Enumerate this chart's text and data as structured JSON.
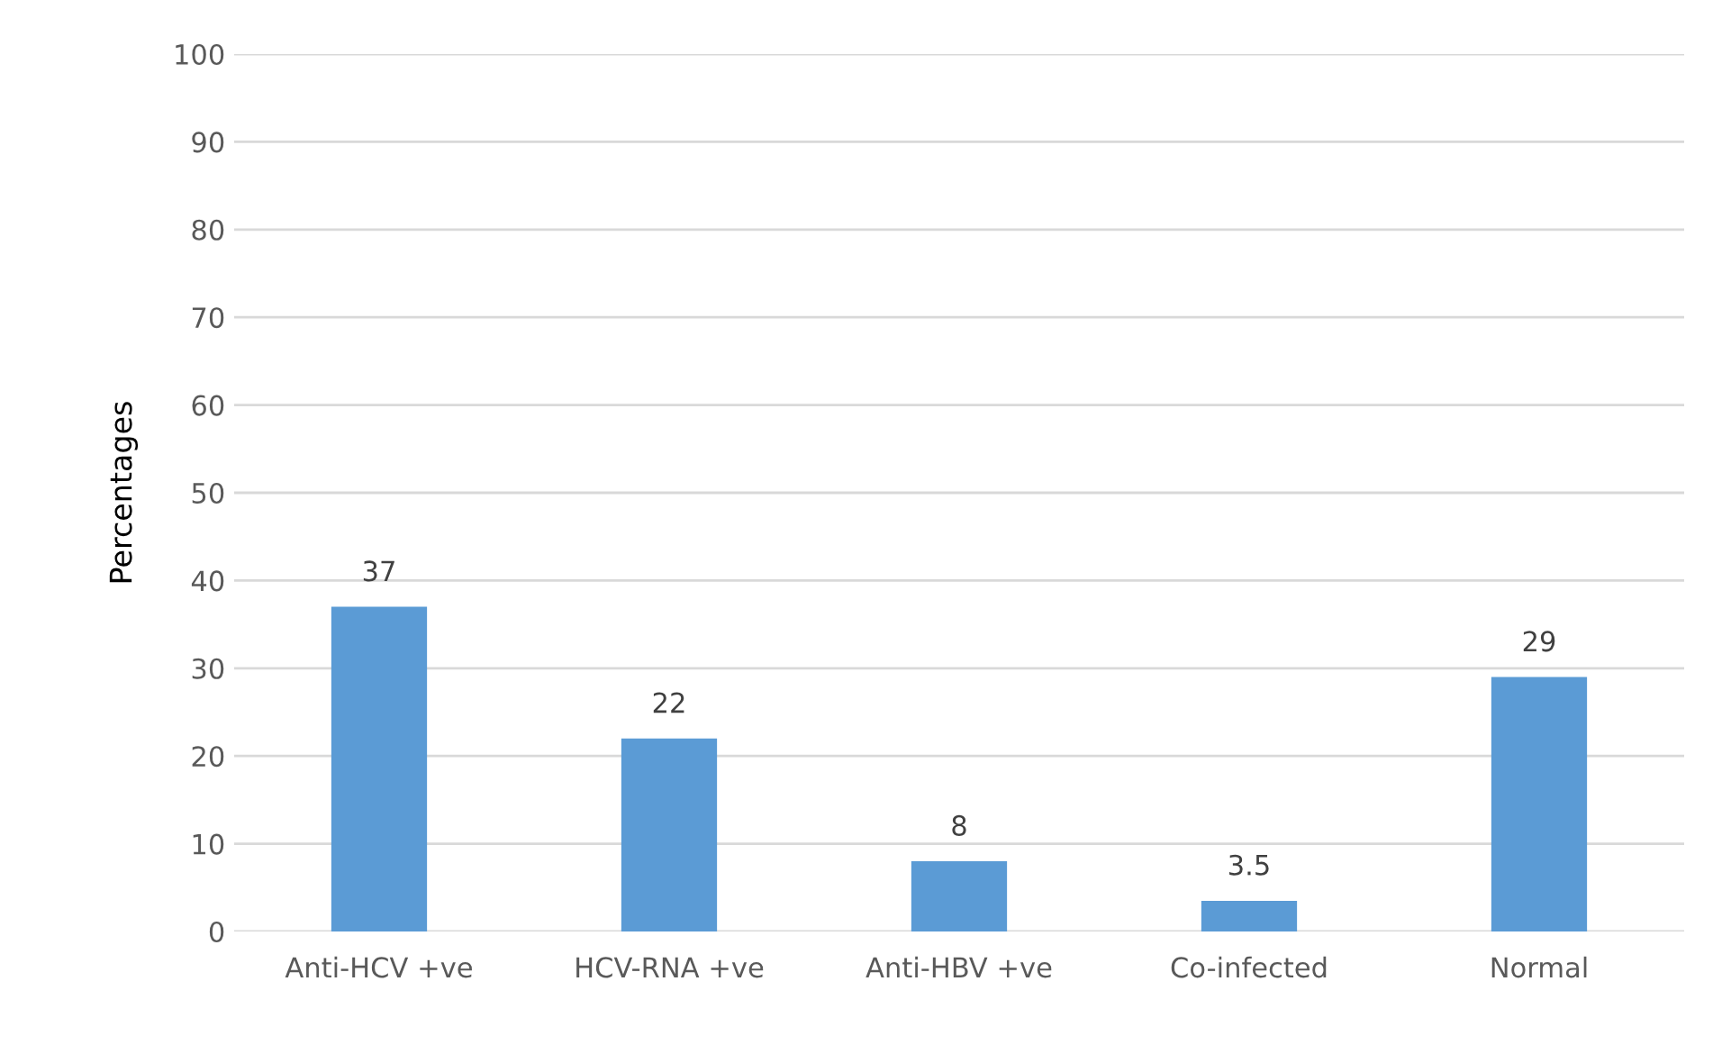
{
  "chart_data": {
    "type": "bar",
    "ylabel": "Percentages",
    "categories": [
      "Anti-HCV +ve",
      "HCV-RNA +ve",
      "Anti-HBV +ve",
      "Co-infected",
      "Normal"
    ],
    "values": [
      37,
      22,
      8,
      3.5,
      29
    ],
    "color": "#5b9bd5",
    "ylim": [
      0,
      100
    ],
    "yticks": [
      0,
      10,
      20,
      30,
      40,
      50,
      60,
      70,
      80,
      90,
      100
    ],
    "grid": "y",
    "data_labels": true
  }
}
